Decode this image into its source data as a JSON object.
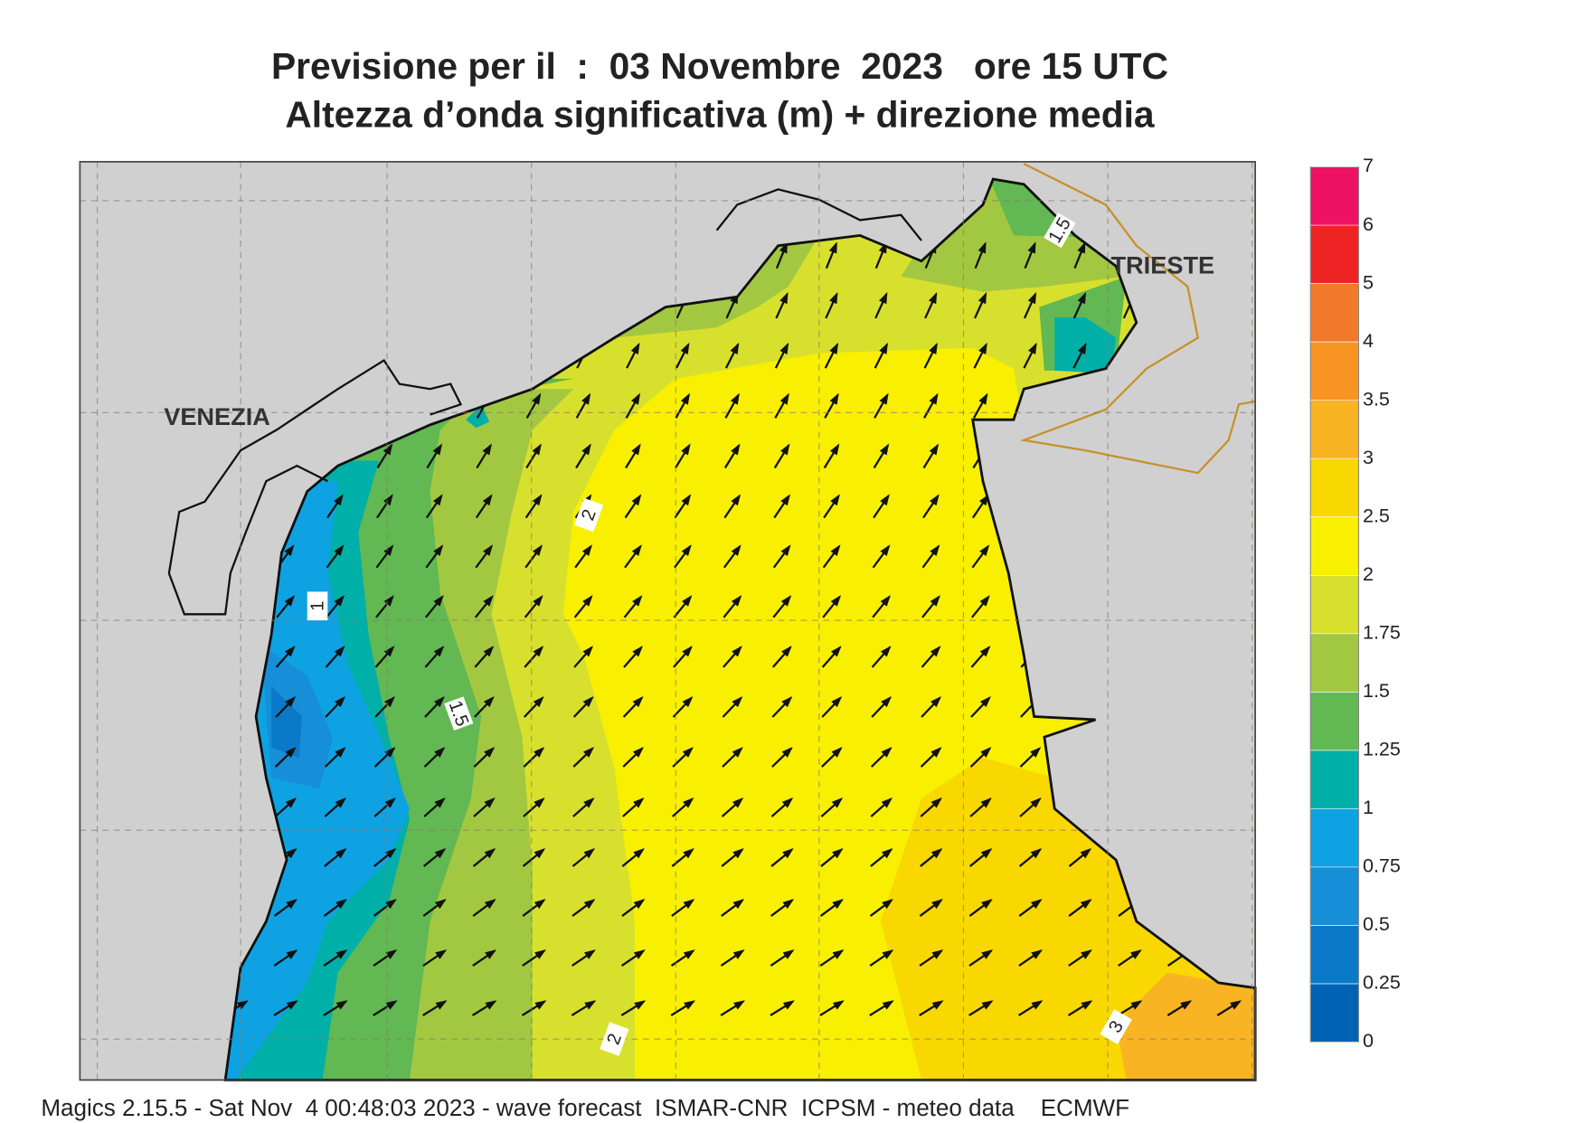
{
  "title": [
    "Previsione per il  :  03 Novembre  2023   ore 15 UTC",
    "Altezza d’onda significativa (m) + direzione media"
  ],
  "place_labels": [
    "VENEZIA",
    "TRIESTE"
  ],
  "contour_labels": [
    1.5,
    2,
    1,
    1.5,
    2,
    3
  ],
  "colorbar": {
    "ticks": [
      0,
      0.25,
      0.5,
      0.75,
      1,
      1.25,
      1.5,
      1.75,
      2,
      2.5,
      3,
      3.5,
      4,
      5,
      6,
      7
    ],
    "colors": [
      "#0062b4",
      "#0a7ac8",
      "#168ed8",
      "#0ea2e2",
      "#00b0a8",
      "#62b852",
      "#a2c842",
      "#d8e02e",
      "#f8f000",
      "#f8d800",
      "#f8b422",
      "#f89422",
      "#f07a2a",
      "#ee2424",
      "#ee1262"
    ]
  },
  "footer": "Magics 2.15.5 - Sat Nov  4 00:48:03 2023 - wave forecast  ISMAR-CNR  ICPSM - meteo data    ECMWF"
}
